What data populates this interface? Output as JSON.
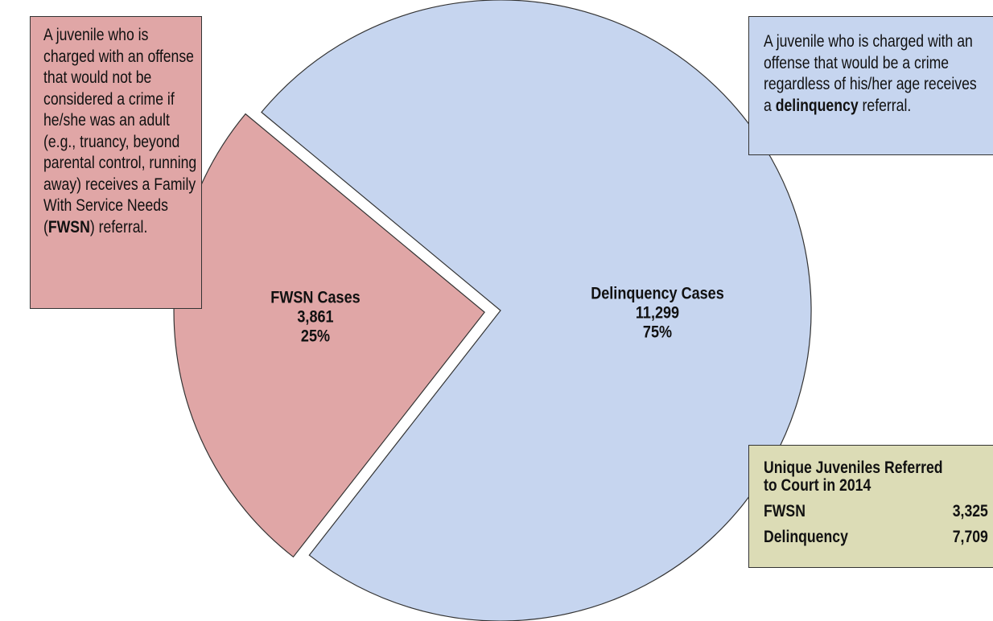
{
  "chart_data": {
    "type": "pie",
    "categories": [
      "FWSN Cases",
      "Delinquency Cases"
    ],
    "values": [
      3861,
      11299
    ],
    "value_labels": [
      "3,861",
      "11,299"
    ],
    "percent_labels": [
      "25%",
      "75%"
    ],
    "colors": [
      "#e0a6a6",
      "#c6d5ef"
    ]
  },
  "annotations": [
    {
      "parts": [
        "A juvenile who is charged with an offense that would not be considered a crime if he/she was an adult (e.g., truancy, beyond parental control, running away) receives a Family With Service Needs (",
        "FWSN",
        ") referral."
      ],
      "bold": [
        1
      ],
      "color": "#e0a6a6"
    },
    {
      "parts": [
        "A juvenile who is charged with an offense that would be a crime regardless of his/her age receives a ",
        "delinquency",
        " referral."
      ],
      "bold": [
        1
      ],
      "color": "#c6d5ef"
    }
  ],
  "table": {
    "title": "Unique Juveniles Referred to Court in 2014",
    "color": "#dcdcb6",
    "rows": [
      [
        "FWSN",
        "3,325"
      ],
      [
        "Delinquency",
        "7,709"
      ]
    ]
  }
}
